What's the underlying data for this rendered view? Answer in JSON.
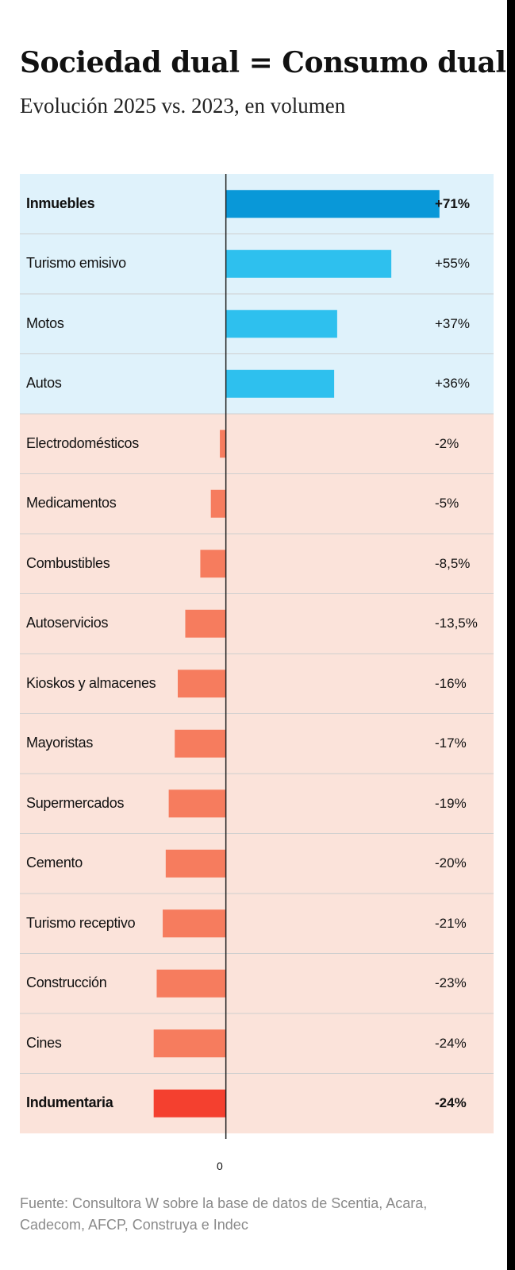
{
  "header": {
    "title": "Sociedad dual = Consumo dual",
    "subtitle": "Evolución 2025 vs. 2023, en volumen"
  },
  "chart_data": {
    "type": "bar",
    "orientation": "horizontal",
    "categories": [
      "Inmuebles",
      "Turismo emisivo",
      "Motos",
      "Autos",
      "Electrodomésticos",
      "Medicamentos",
      "Combustibles",
      "Autoservicios",
      "Kioskos y almacenes",
      "Mayoristas",
      "Supermercados",
      "Cemento",
      "Turismo receptivo",
      "Construcción",
      "Cines",
      "Indumentaria"
    ],
    "values": [
      71,
      55,
      37,
      36,
      -2,
      -5,
      -8.5,
      -13.5,
      -16,
      -17,
      -19,
      -20,
      -21,
      -23,
      -24,
      -24
    ],
    "value_labels": [
      "+71%",
      "+55%",
      "+37%",
      "+36%",
      "-2%",
      "-5%",
      "-8,5%",
      "-13,5%",
      "-16%",
      "-17%",
      "-19%",
      "-20%",
      "-21%",
      "-23%",
      "-24%",
      "-24%"
    ],
    "highlighted": [
      "Inmuebles",
      "Indumentaria"
    ],
    "zero_tick_label": "0",
    "xlim": [
      -68.5,
      89
    ],
    "colors": {
      "positive_background": "#dff2fb",
      "negative_background": "#fbe3da",
      "positive_bar": "#2ec0ee",
      "positive_highlight": "#0998d8",
      "negative_bar": "#f67c5e",
      "negative_highlight": "#f4402f",
      "separator": "#cfcfcf",
      "axis": "#222222"
    }
  },
  "source": "Fuente: Consultora W sobre la base de datos de Scentia, Acara, Cadecom, AFCP, Construya e Indec"
}
